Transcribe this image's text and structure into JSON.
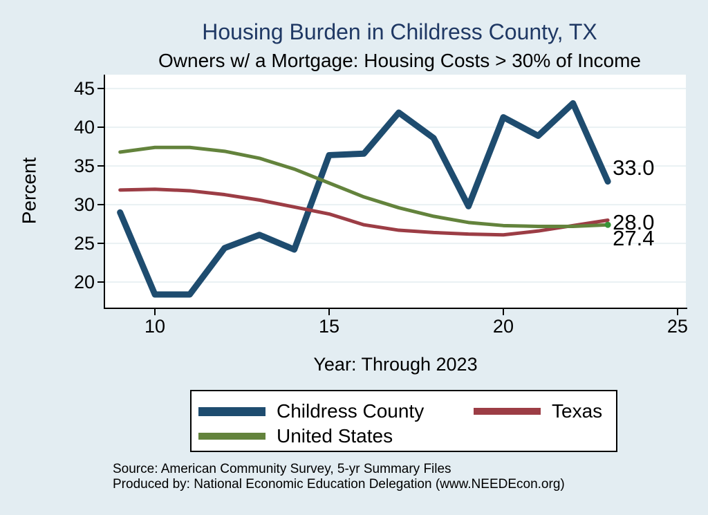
{
  "title": "Housing Burden in Childress County, TX",
  "subtitle": "Owners w/ a Mortgage: Housing Costs > 30% of Income",
  "colors": {
    "background": "#e3edf2",
    "plot_background": "#ffffff",
    "grid": "#e9f1f3",
    "axis": "#000000",
    "title": "#1f3864",
    "text": "#000000",
    "childress": "#1e4c6f",
    "texas": "#9c3d45",
    "us": "#63833c",
    "end_dot": "#389438"
  },
  "chart_data": {
    "type": "line",
    "title": "Housing Burden in Childress County, TX",
    "subtitle": "Owners w/ a Mortgage: Housing Costs > 30% of Income",
    "xlabel": "Year: Through 2023",
    "ylabel": "Percent",
    "x": [
      9,
      10,
      11,
      12,
      13,
      14,
      15,
      16,
      17,
      18,
      19,
      20,
      21,
      22,
      23
    ],
    "series": [
      {
        "name": "Childress County",
        "color_key": "childress",
        "end_label": "33.0",
        "end_marker": false,
        "values": [
          29.0,
          18.4,
          18.4,
          24.4,
          26.1,
          24.2,
          36.4,
          36.6,
          41.9,
          38.6,
          29.8,
          41.3,
          38.9,
          43.1,
          33.0
        ]
      },
      {
        "name": "Texas",
        "color_key": "texas",
        "end_label": "28.0",
        "end_marker": false,
        "values": [
          31.9,
          32.0,
          31.8,
          31.3,
          30.6,
          29.7,
          28.8,
          27.4,
          26.7,
          26.4,
          26.2,
          26.1,
          26.6,
          27.3,
          28.0
        ]
      },
      {
        "name": "United States",
        "color_key": "us",
        "end_label": "27.4",
        "end_marker": true,
        "values": [
          36.8,
          37.4,
          37.4,
          36.9,
          36.0,
          34.6,
          32.8,
          31.0,
          29.6,
          28.5,
          27.7,
          27.3,
          27.2,
          27.2,
          27.4
        ]
      }
    ],
    "x_ticks": [
      10,
      15,
      20,
      25
    ],
    "y_ticks": [
      20,
      25,
      30,
      35,
      40,
      45
    ],
    "xlim": [
      8.57,
      25.24
    ],
    "ylim": [
      16.7,
      46.8
    ],
    "grid": "horizontal",
    "legend_position": "bottom"
  },
  "legend": {
    "items": [
      {
        "label": "Childress County",
        "color_key": "childress"
      },
      {
        "label": "Texas",
        "color_key": "texas"
      },
      {
        "label": "United States",
        "color_key": "us"
      }
    ]
  },
  "source": {
    "line1": "Source: American Community Survey, 5-yr Summary Files",
    "line2": "Produced by: National Economic Education Delegation (www.NEEDEcon.org)"
  }
}
